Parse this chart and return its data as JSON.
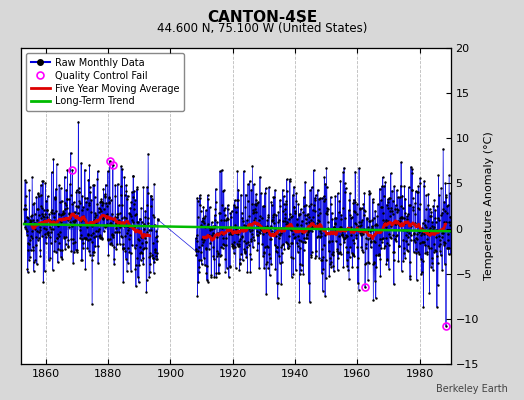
{
  "title": "CANTON-4SE",
  "subtitle": "44.600 N, 75.100 W (United States)",
  "ylabel": "Temperature Anomaly (°C)",
  "watermark": "Berkeley Earth",
  "year_start": 1853,
  "year_end": 1991,
  "x_ticks": [
    1860,
    1880,
    1900,
    1920,
    1940,
    1960,
    1980
  ],
  "ylim": [
    -15,
    20
  ],
  "y_ticks": [
    -15,
    -10,
    -5,
    0,
    5,
    10,
    15,
    20
  ],
  "bg_color": "#d8d8d8",
  "plot_bg_color": "#ffffff",
  "line_color": "#0000dd",
  "stem_color": "#8888ff",
  "ma_color": "#dd0000",
  "trend_color": "#00bb00",
  "qc_color": "#ff00ff",
  "seed": 42,
  "gap_start": 1896,
  "gap_end": 1908,
  "ma_window": 60,
  "qc_points_x": [
    1868.5,
    1880.5,
    1881.5,
    1962.5,
    1988.5
  ],
  "qc_points_y": [
    6.5,
    7.5,
    7.0,
    -6.5,
    -10.8
  ]
}
